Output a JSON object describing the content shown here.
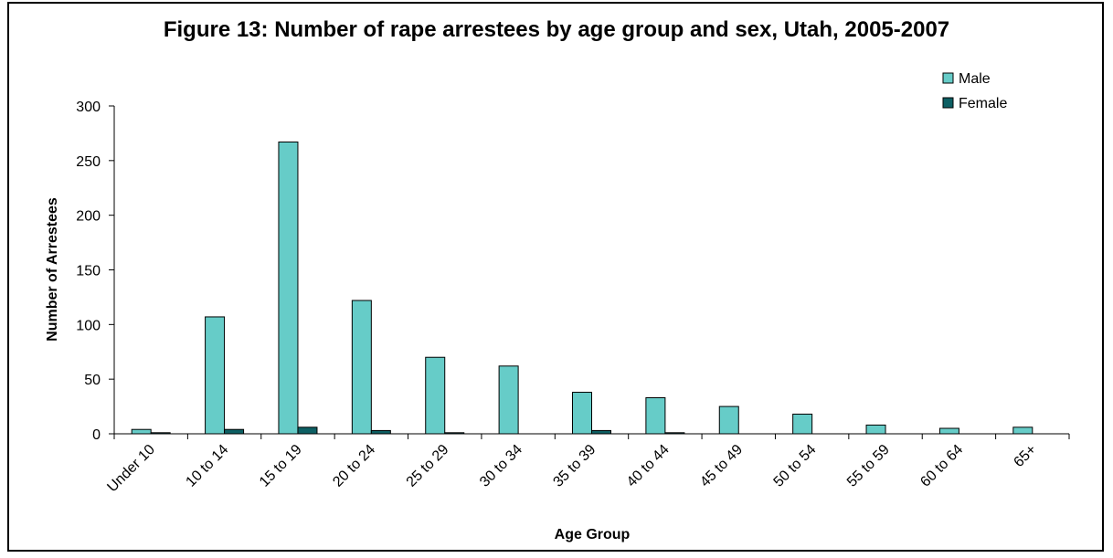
{
  "chart_data": {
    "type": "bar",
    "title": "Figure 13: Number of rape arrestees by age group and sex, Utah, 2005-2007",
    "xlabel": "Age Group",
    "ylabel": "Number of Arrestees",
    "categories": [
      "Under 10",
      "10 to 14",
      "15 to 19",
      "20 to 24",
      "25 to 29",
      "30 to 34",
      "35 to 39",
      "40 to 44",
      "45 to 49",
      "50 to 54",
      "55 to 59",
      "60 to 64",
      "65+"
    ],
    "series": [
      {
        "name": "Male",
        "color": "#66CCC8",
        "values": [
          4,
          107,
          267,
          122,
          70,
          62,
          38,
          33,
          25,
          18,
          8,
          5,
          6
        ]
      },
      {
        "name": "Female",
        "color": "#0D5F63",
        "values": [
          1,
          4,
          6,
          3,
          1,
          0,
          3,
          1,
          0,
          0,
          0,
          0,
          0
        ]
      }
    ],
    "ylim": [
      0,
      300
    ],
    "yticks": [
      0,
      50,
      100,
      150,
      200,
      250,
      300
    ],
    "grid": false,
    "legend_position": "top-right"
  }
}
